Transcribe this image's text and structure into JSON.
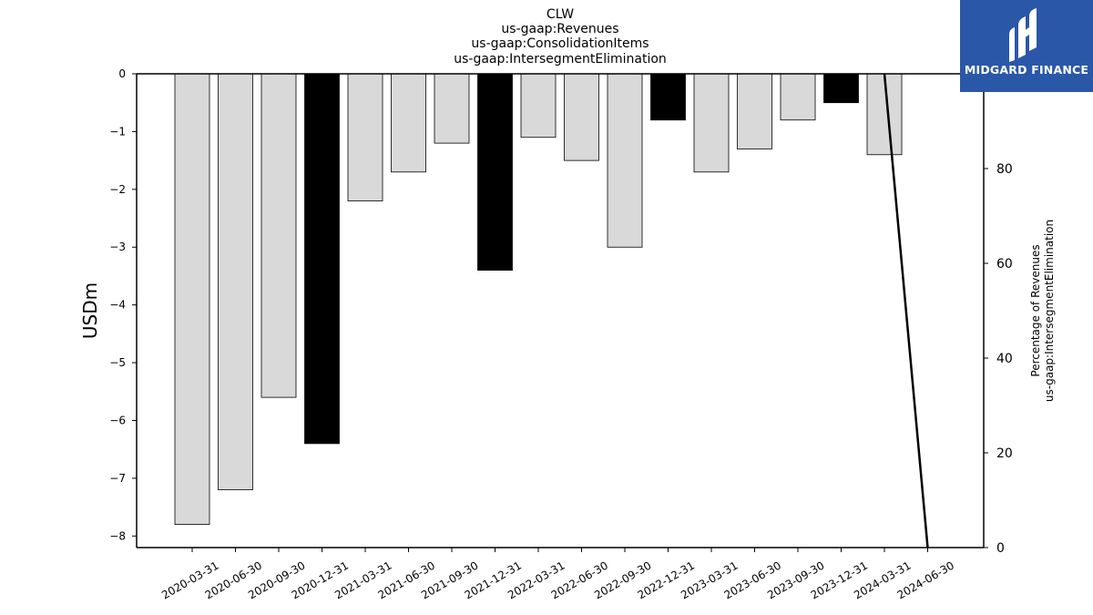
{
  "chart_data": {
    "type": "bar",
    "title_lines": [
      "CLW",
      "us-gaap:Revenues",
      "us-gaap:ConsolidationItems",
      "us-gaap:IntersegmentElimination"
    ],
    "ylabel": "USDm",
    "y2label_lines": [
      "Percentage of Revenues",
      "us-gaap:IntersegmentElimination"
    ],
    "categories": [
      "2020-03-31",
      "2020-06-30",
      "2020-09-30",
      "2020-12-31",
      "2021-03-31",
      "2021-06-30",
      "2021-09-30",
      "2021-12-31",
      "2022-03-31",
      "2022-06-30",
      "2022-09-30",
      "2022-12-31",
      "2023-03-31",
      "2023-06-30",
      "2023-09-30",
      "2023-12-31",
      "2024-03-31",
      "2024-06-30"
    ],
    "values": [
      -7.8,
      -7.2,
      -5.6,
      -6.4,
      -2.2,
      -1.7,
      -1.2,
      -3.4,
      -1.1,
      -1.5,
      -3.0,
      -0.8,
      -1.7,
      -1.3,
      -0.8,
      -0.5,
      -1.4,
      null
    ],
    "highlight": [
      false,
      false,
      false,
      true,
      false,
      false,
      false,
      true,
      false,
      false,
      false,
      true,
      false,
      false,
      false,
      true,
      false,
      false
    ],
    "ylim": [
      -8.2,
      0
    ],
    "yticks": [
      0,
      -1,
      -2,
      -3,
      -4,
      -5,
      -6,
      -7,
      -8
    ],
    "ytick_labels": [
      "0",
      "−1",
      "−2",
      "−3",
      "−4",
      "−5",
      "−6",
      "−7",
      "−8"
    ],
    "y2lim": [
      0,
      100
    ],
    "y2ticks": [
      0,
      20,
      40,
      60,
      80
    ],
    "line_series": {
      "x_categories": [
        "2024-03-31",
        "2024-06-30"
      ],
      "values": [
        100,
        0
      ]
    },
    "colors": {
      "bar": "#d9d9d9",
      "highlight": "#000000",
      "line": "#000000"
    }
  },
  "logo": {
    "text": "MIDGARD FINANCE",
    "color": "#2b57a8"
  }
}
